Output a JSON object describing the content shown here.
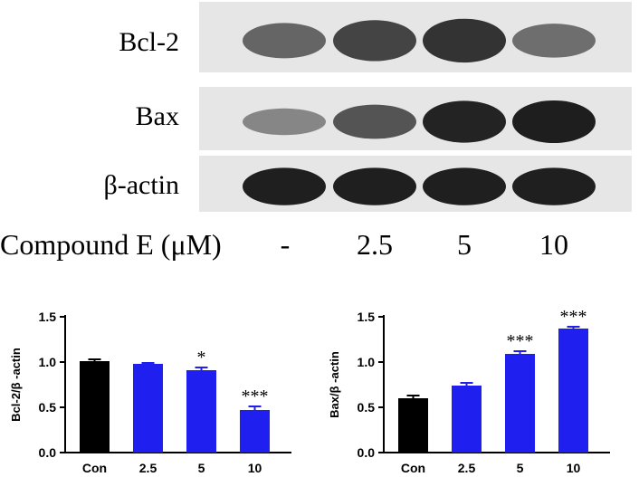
{
  "blot": {
    "rows": [
      {
        "label": "Bcl-2",
        "intensity": [
          0.55,
          0.75,
          0.85,
          0.5
        ]
      },
      {
        "label": "Bax",
        "intensity": [
          0.35,
          0.65,
          0.95,
          0.98
        ]
      },
      {
        "label": "β-actin",
        "intensity": [
          0.97,
          0.97,
          0.97,
          0.97
        ]
      }
    ],
    "concentration_label": "Compound E (μM)",
    "concentrations": [
      "-",
      "2.5",
      "5",
      "10"
    ]
  },
  "colors": {
    "control": "#000000",
    "treated": "#1f1ff0"
  },
  "chart_data": [
    {
      "type": "bar",
      "categories": [
        "Con",
        "2.5",
        "5",
        "10"
      ],
      "values": [
        1.01,
        0.98,
        0.91,
        0.47
      ],
      "errors": [
        0.02,
        0.01,
        0.03,
        0.04
      ],
      "significance": [
        "",
        "",
        "*",
        "***"
      ],
      "ylabel": "Bcl-2/β -actin",
      "ylim": [
        0.0,
        1.5
      ],
      "yticks": [
        "0.0",
        "0.5",
        "1.0",
        "1.5"
      ]
    },
    {
      "type": "bar",
      "categories": [
        "Con",
        "2.5",
        "5",
        "10"
      ],
      "values": [
        0.6,
        0.74,
        1.09,
        1.37
      ],
      "errors": [
        0.03,
        0.03,
        0.03,
        0.02
      ],
      "significance": [
        "",
        "",
        "***",
        "***"
      ],
      "ylabel": "Bax/β -actin",
      "ylim": [
        0.0,
        1.5
      ],
      "yticks": [
        "0.0",
        "0.5",
        "1.0",
        "1.5"
      ]
    }
  ]
}
